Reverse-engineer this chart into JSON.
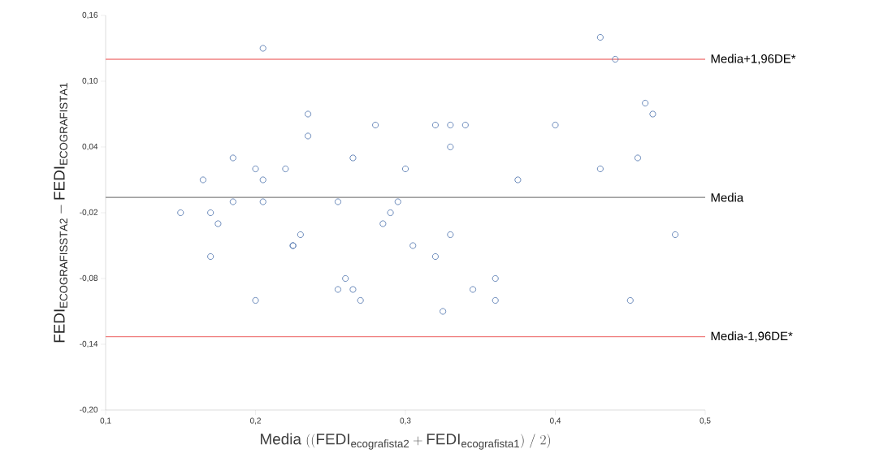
{
  "chart_data": {
    "type": "scatter",
    "xlabel": "\\mathrm{Media}\\ ((\\mathrm{FEDI}_{\\mathrm{ecografista2}} + \\mathrm{FEDI}_{\\mathrm{ecografista1}})\\ /\\ 2)",
    "ylabel": "\\mathrm{FEDI}_{\\mathrm{ECOGRAFISSTA2}} - \\mathrm{FEDI}_{\\mathrm{ECOGRAFISTA1}}",
    "marker": "circle",
    "grid": false,
    "xlim": [
      0.1,
      0.5
    ],
    "ylim": [
      -0.2,
      0.16
    ],
    "xticks": [
      {
        "value": 0.1,
        "label": "0,1"
      },
      {
        "value": 0.2,
        "label": "0,2"
      },
      {
        "value": 0.3,
        "label": "0,3"
      },
      {
        "value": 0.4,
        "label": "0,4"
      },
      {
        "value": 0.5,
        "label": "0,5"
      }
    ],
    "yticks": [
      {
        "value": -0.2,
        "label": "-0,20"
      },
      {
        "value": -0.14,
        "label": "-0,14"
      },
      {
        "value": -0.08,
        "label": "-0,08"
      },
      {
        "value": -0.02,
        "label": "-0,02"
      },
      {
        "value": 0.04,
        "label": "0,04"
      },
      {
        "value": 0.1,
        "label": "0,10"
      },
      {
        "value": 0.16,
        "label": "0,16"
      }
    ],
    "series": [
      {
        "color": "#5b7db3",
        "x": [
          0.205,
          0.235,
          0.235,
          0.185,
          0.2,
          0.22,
          0.165,
          0.205,
          0.185,
          0.205,
          0.15,
          0.17,
          0.175,
          0.23,
          0.225,
          0.225,
          0.17,
          0.2,
          0.28,
          0.32,
          0.33,
          0.34,
          0.33,
          0.265,
          0.3,
          0.255,
          0.295,
          0.29,
          0.285,
          0.33,
          0.305,
          0.32,
          0.26,
          0.255,
          0.265,
          0.27,
          0.345,
          0.36,
          0.36,
          0.325,
          0.43,
          0.44,
          0.46,
          0.465,
          0.4,
          0.455,
          0.43,
          0.375,
          0.48,
          0.45
        ],
        "values": [
          0.13,
          0.07,
          0.05,
          0.03,
          0.02,
          0.02,
          0.01,
          0.01,
          -0.01,
          -0.01,
          -0.02,
          -0.02,
          -0.03,
          -0.04,
          -0.05,
          -0.05,
          -0.06,
          -0.1,
          0.06,
          0.06,
          0.06,
          0.06,
          0.04,
          0.03,
          0.02,
          -0.01,
          -0.01,
          -0.02,
          -0.03,
          -0.04,
          -0.05,
          -0.06,
          -0.08,
          -0.09,
          -0.09,
          -0.1,
          -0.09,
          -0.08,
          -0.1,
          -0.11,
          0.14,
          0.12,
          0.08,
          0.07,
          0.06,
          0.03,
          0.02,
          0.01,
          -0.04,
          -0.1
        ]
      }
    ],
    "ref_lines": [
      {
        "axis": "y",
        "value": 0.12,
        "label": "Media+1,96DE*",
        "color": "#f08080"
      },
      {
        "axis": "y",
        "value": -0.006,
        "label": "Media",
        "color": "#808080"
      },
      {
        "axis": "y",
        "value": -0.133,
        "label": "Media-1,96DE*",
        "color": "#f08080"
      }
    ]
  }
}
